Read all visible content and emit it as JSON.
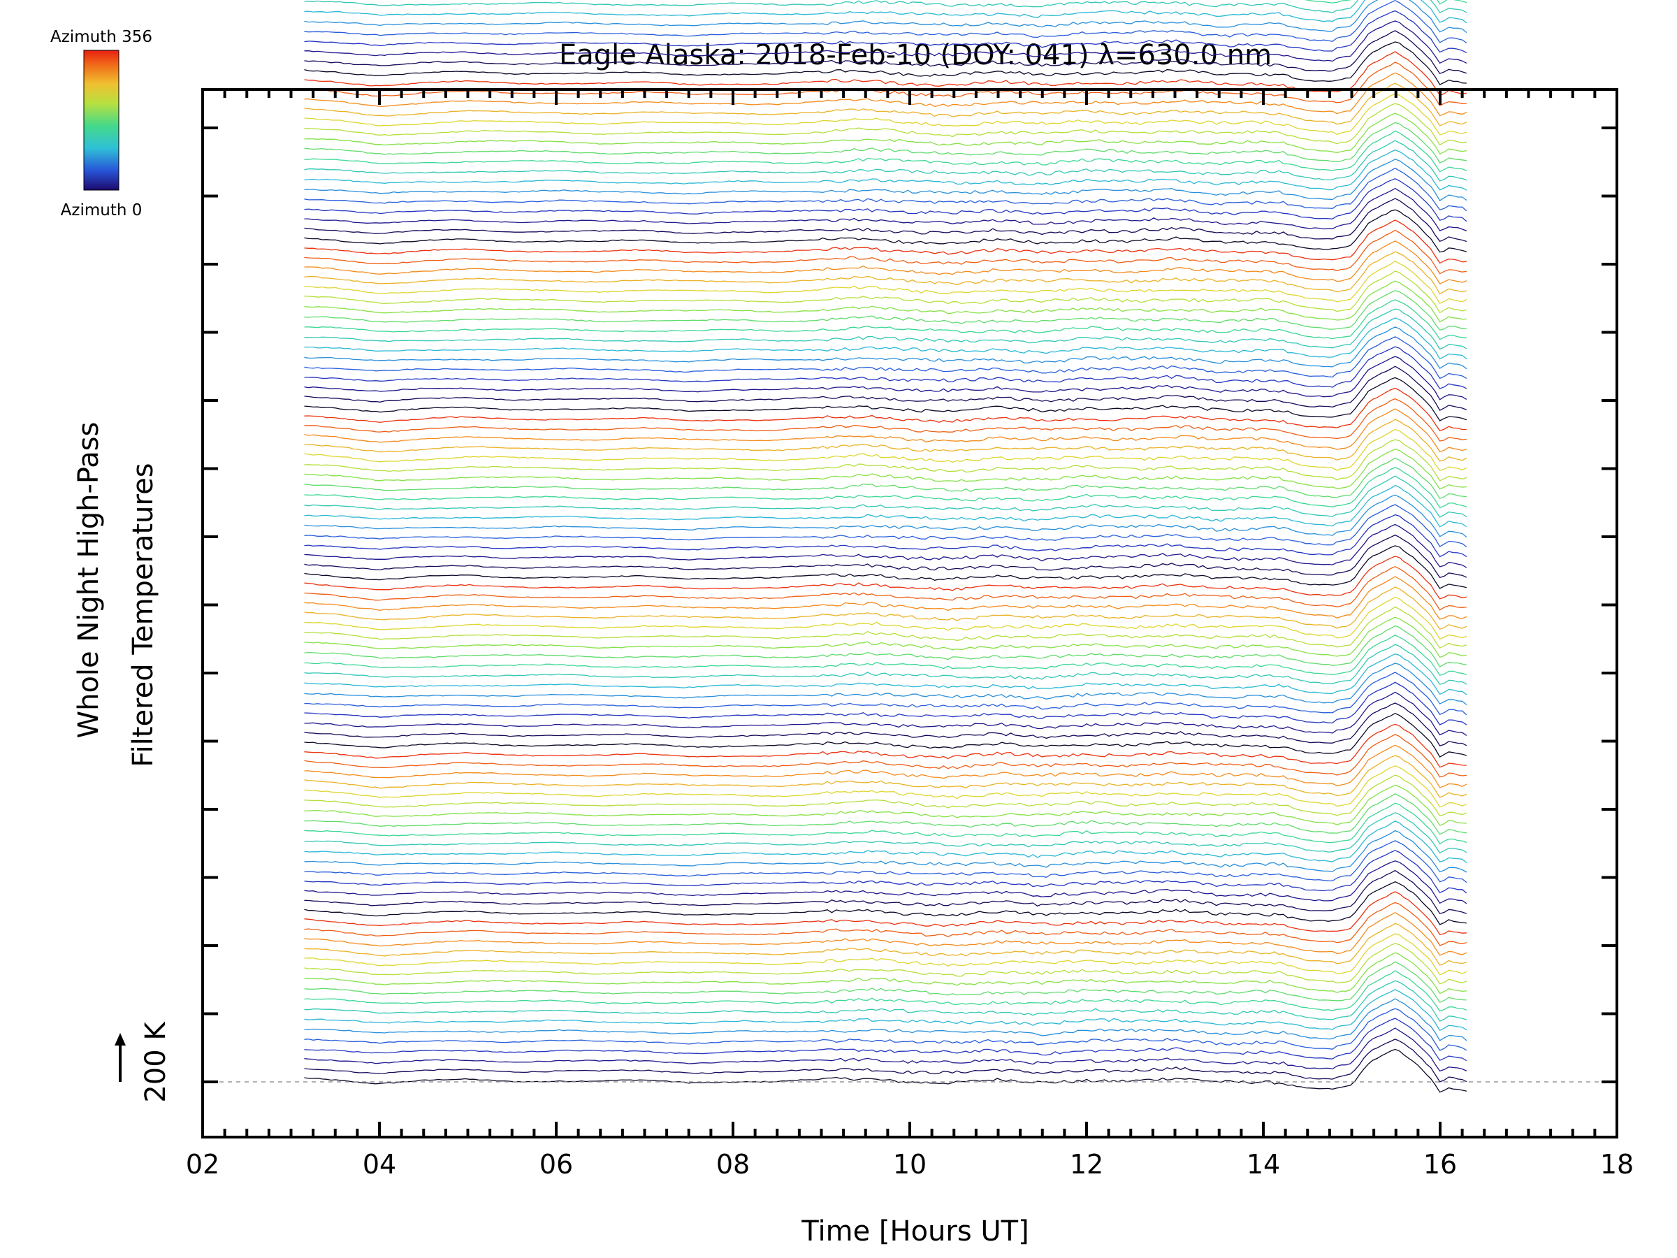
{
  "chart_data": {
    "type": "line",
    "title": "Eagle Alaska: 2018-Feb-10 (DOY: 041) λ=630.0 nm",
    "xlabel": "Time [Hours UT]",
    "ylabel_line1": "Whole Night High-Pass",
    "ylabel_line2": "Filtered Temperatures",
    "xlim": [
      2,
      18
    ],
    "x_ticks": [
      "02",
      "04",
      "06",
      "08",
      "10",
      "12",
      "14",
      "16",
      "18"
    ],
    "scale_bar_label": "200 K",
    "colorbar": {
      "top_label": "Azimuth 356",
      "bottom_label": "Azimuth 0",
      "colormap": "rainbow",
      "colors": [
        "#1e0a6e",
        "#2855d8",
        "#2fc0d8",
        "#44d98a",
        "#b8e040",
        "#f0c030",
        "#f06818",
        "#e82010"
      ]
    },
    "series_count": 140,
    "time_range_hours": [
      3.15,
      16.3
    ],
    "stack_offset_K": 29,
    "traces_per_color_cycle": 17,
    "baseline_reference_K": 0,
    "reference_line": "dashed",
    "representative_profile": {
      "x": [
        3.15,
        3.5,
        4.0,
        4.5,
        5.0,
        5.5,
        6.0,
        6.5,
        7.0,
        7.5,
        8.0,
        8.5,
        9.0,
        9.5,
        10.0,
        10.5,
        11.0,
        11.5,
        12.0,
        12.5,
        13.0,
        13.5,
        14.0,
        14.2,
        14.5,
        14.8,
        15.0,
        15.2,
        15.5,
        15.7,
        15.9,
        16.0,
        16.1,
        16.3
      ],
      "y": [
        12,
        8,
        -4,
        2,
        6,
        3,
        4,
        1,
        3,
        -1,
        2,
        0,
        5,
        10,
        2,
        -3,
        4,
        -2,
        6,
        3,
        8,
        -1,
        2,
        0,
        -18,
        -22,
        -12,
        55,
        95,
        60,
        10,
        -30,
        -15,
        -25
      ]
    }
  }
}
